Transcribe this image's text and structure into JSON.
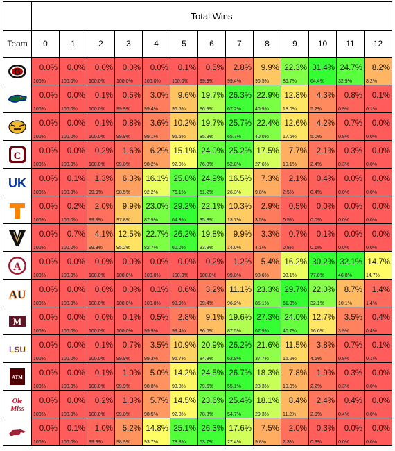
{
  "header": {
    "title": "Total Wins",
    "team_label": "Team"
  },
  "win_columns": [
    "0",
    "1",
    "2",
    "3",
    "4",
    "5",
    "6",
    "7",
    "8",
    "9",
    "10",
    "11",
    "12"
  ],
  "teams": [
    {
      "name": "Georgia",
      "logo_text": "G",
      "icon": "georgia-g-logo-icon",
      "pct": [
        "0.0%",
        "0.0%",
        "0.0%",
        "0.0%",
        "0.0%",
        "0.1%",
        "0.5%",
        "2.8%",
        "9.9%",
        "22.3%",
        "31.4%",
        "24.7%",
        "8.2%"
      ],
      "cum": [
        "100%",
        "100.0%",
        "100.0%",
        "100.0%",
        "100.0%",
        "100.0%",
        "99.9%",
        "99.4%",
        "96.5%",
        "86.7%",
        "64.4%",
        "32.9%",
        "8.2%"
      ]
    },
    {
      "name": "Florida",
      "logo_text": "",
      "icon": "florida-gator-logo-icon",
      "pct": [
        "0.0%",
        "0.0%",
        "0.1%",
        "0.5%",
        "3.0%",
        "9.6%",
        "19.7%",
        "26.3%",
        "22.9%",
        "12.8%",
        "4.3%",
        "0.8%",
        "0.1%"
      ],
      "cum": [
        "100%",
        "100.0%",
        "100.0%",
        "99.9%",
        "99.4%",
        "96.5%",
        "86.9%",
        "67.2%",
        "40.9%",
        "18.0%",
        "5.2%",
        "0.9%",
        "0.1%"
      ]
    },
    {
      "name": "Missouri",
      "logo_text": "",
      "icon": "missouri-tiger-logo-icon",
      "pct": [
        "0.0%",
        "0.0%",
        "0.1%",
        "0.8%",
        "3.6%",
        "10.2%",
        "19.7%",
        "25.7%",
        "22.4%",
        "12.6%",
        "4.2%",
        "0.7%",
        "0.0%"
      ],
      "cum": [
        "100%",
        "100.0%",
        "100.0%",
        "99.9%",
        "99.1%",
        "95.5%",
        "85.3%",
        "65.7%",
        "40.0%",
        "17.6%",
        "5.0%",
        "0.8%",
        "0.0%"
      ]
    },
    {
      "name": "South Carolina",
      "logo_text": "C",
      "icon": "south-carolina-c-logo-icon",
      "pct": [
        "0.0%",
        "0.0%",
        "0.2%",
        "1.6%",
        "6.2%",
        "15.1%",
        "24.0%",
        "25.2%",
        "17.5%",
        "7.7%",
        "2.1%",
        "0.3%",
        "0.0%"
      ],
      "cum": [
        "100%",
        "100.0%",
        "100.0%",
        "99.8%",
        "98.2%",
        "92.0%",
        "76.8%",
        "52.8%",
        "27.6%",
        "10.1%",
        "2.4%",
        "0.3%",
        "0.0%"
      ]
    },
    {
      "name": "Kentucky",
      "logo_text": "UK",
      "icon": "kentucky-uk-logo-icon",
      "pct": [
        "0.0%",
        "0.1%",
        "1.3%",
        "6.3%",
        "16.1%",
        "25.0%",
        "24.9%",
        "16.5%",
        "7.3%",
        "2.1%",
        "0.4%",
        "0.0%",
        "0.0%"
      ],
      "cum": [
        "100%",
        "100.0%",
        "99.9%",
        "98.5%",
        "92.2%",
        "76.1%",
        "51.2%",
        "26.3%",
        "9.8%",
        "2.5%",
        "0.4%",
        "0.0%",
        "0.0%"
      ]
    },
    {
      "name": "Tennessee",
      "logo_text": "T",
      "icon": "tennessee-t-logo-icon",
      "pct": [
        "0.0%",
        "0.2%",
        "2.0%",
        "9.9%",
        "23.0%",
        "29.2%",
        "22.1%",
        "10.3%",
        "2.9%",
        "0.5%",
        "0.0%",
        "0.0%",
        "0.0%"
      ],
      "cum": [
        "100%",
        "100.0%",
        "99.8%",
        "97.8%",
        "87.9%",
        "64.9%",
        "35.8%",
        "13.7%",
        "3.5%",
        "0.5%",
        "0.0%",
        "0.0%",
        "0.0%"
      ]
    },
    {
      "name": "Vanderbilt",
      "logo_text": "V",
      "icon": "vanderbilt-v-logo-icon",
      "pct": [
        "0.0%",
        "0.7%",
        "4.1%",
        "12.5%",
        "22.7%",
        "26.2%",
        "19.8%",
        "9.9%",
        "3.3%",
        "0.7%",
        "0.1%",
        "0.0%",
        "0.0%"
      ],
      "cum": [
        "100%",
        "100.0%",
        "99.3%",
        "95.2%",
        "82.7%",
        "60.0%",
        "33.8%",
        "14.0%",
        "4.1%",
        "0.8%",
        "0.1%",
        "0.0%",
        "0.0%"
      ]
    },
    {
      "name": "Alabama",
      "logo_text": "A",
      "icon": "alabama-a-logo-icon",
      "pct": [
        "0.0%",
        "0.0%",
        "0.0%",
        "0.0%",
        "0.0%",
        "0.0%",
        "0.2%",
        "1.2%",
        "5.4%",
        "16.2%",
        "30.2%",
        "32.1%",
        "14.7%"
      ],
      "cum": [
        "100%",
        "100.0%",
        "100.0%",
        "100.0%",
        "100.0%",
        "100.0%",
        "100.0%",
        "99.8%",
        "98.6%",
        "93.1%",
        "77.0%",
        "46.8%",
        "14.7%"
      ]
    },
    {
      "name": "Auburn",
      "logo_text": "AU",
      "icon": "auburn-au-logo-icon",
      "pct": [
        "0.0%",
        "0.0%",
        "0.0%",
        "0.0%",
        "0.1%",
        "0.6%",
        "3.2%",
        "11.1%",
        "23.3%",
        "29.7%",
        "22.0%",
        "8.7%",
        "1.4%"
      ],
      "cum": [
        "100%",
        "100.0%",
        "100.0%",
        "100.0%",
        "100.0%",
        "99.9%",
        "99.4%",
        "96.2%",
        "85.1%",
        "61.8%",
        "32.1%",
        "10.1%",
        "1.4%"
      ]
    },
    {
      "name": "Mississippi State",
      "logo_text": "M",
      "icon": "mississippi-state-m-logo-icon",
      "pct": [
        "0.0%",
        "0.0%",
        "0.0%",
        "0.1%",
        "0.5%",
        "2.8%",
        "9.1%",
        "19.6%",
        "27.3%",
        "24.0%",
        "12.7%",
        "3.5%",
        "0.4%"
      ],
      "cum": [
        "100%",
        "100.0%",
        "100.0%",
        "100.0%",
        "99.9%",
        "99.4%",
        "96.6%",
        "87.5%",
        "67.9%",
        "40.7%",
        "16.6%",
        "3.9%",
        "0.4%"
      ]
    },
    {
      "name": "LSU",
      "logo_text": "LSU",
      "icon": "lsu-logo-icon",
      "pct": [
        "0.0%",
        "0.0%",
        "0.1%",
        "0.7%",
        "3.5%",
        "10.9%",
        "20.9%",
        "26.2%",
        "21.6%",
        "11.5%",
        "3.8%",
        "0.7%",
        "0.1%"
      ],
      "cum": [
        "100%",
        "100.0%",
        "100.0%",
        "99.9%",
        "99.3%",
        "95.7%",
        "84.8%",
        "63.9%",
        "37.7%",
        "16.2%",
        "4.6%",
        "0.8%",
        "0.1%"
      ]
    },
    {
      "name": "Texas A&M",
      "logo_text": "ATM",
      "icon": "texas-am-logo-icon",
      "pct": [
        "0.0%",
        "0.0%",
        "0.1%",
        "1.0%",
        "5.0%",
        "14.2%",
        "24.5%",
        "26.7%",
        "18.3%",
        "7.8%",
        "1.9%",
        "0.3%",
        "0.0%"
      ],
      "cum": [
        "100%",
        "100.0%",
        "100.0%",
        "99.9%",
        "98.8%",
        "93.8%",
        "79.6%",
        "55.1%",
        "28.3%",
        "10.0%",
        "2.2%",
        "0.3%",
        "0.0%"
      ]
    },
    {
      "name": "Ole Miss",
      "logo_text": "Ole Miss",
      "icon": "ole-miss-script-logo-icon",
      "pct": [
        "0.0%",
        "0.0%",
        "0.2%",
        "1.3%",
        "5.7%",
        "14.5%",
        "23.6%",
        "25.4%",
        "18.1%",
        "8.4%",
        "2.4%",
        "0.4%",
        "0.0%"
      ],
      "cum": [
        "100%",
        "100.0%",
        "100.0%",
        "99.8%",
        "98.5%",
        "92.8%",
        "78.3%",
        "54.7%",
        "29.3%",
        "11.2%",
        "2.9%",
        "0.4%",
        "0.0%"
      ]
    },
    {
      "name": "Arkansas",
      "logo_text": "",
      "icon": "arkansas-razorback-logo-icon",
      "pct": [
        "0.0%",
        "0.1%",
        "1.0%",
        "5.2%",
        "14.8%",
        "25.1%",
        "26.3%",
        "17.6%",
        "7.5%",
        "2.0%",
        "0.3%",
        "0.0%",
        "0.0%"
      ],
      "cum": [
        "100%",
        "100.0%",
        "99.9%",
        "98.9%",
        "93.7%",
        "78.8%",
        "53.7%",
        "27.4%",
        "9.8%",
        "2.3%",
        "0.3%",
        "0.0%",
        "0.0%"
      ]
    }
  ],
  "chart_data": {
    "type": "heatmap",
    "title": "Total Wins",
    "xlabel": "Total Wins",
    "ylabel": "Team",
    "x": [
      0,
      1,
      2,
      3,
      4,
      5,
      6,
      7,
      8,
      9,
      10,
      11,
      12
    ],
    "y": [
      "Georgia",
      "Florida",
      "Missouri",
      "South Carolina",
      "Kentucky",
      "Tennessee",
      "Vanderbilt",
      "Alabama",
      "Auburn",
      "Mississippi State",
      "LSU",
      "Texas A&M",
      "Ole Miss",
      "Arkansas"
    ],
    "values": [
      [
        0.0,
        0.0,
        0.0,
        0.0,
        0.0,
        0.1,
        0.5,
        2.8,
        9.9,
        22.3,
        31.4,
        24.7,
        8.2
      ],
      [
        0.0,
        0.0,
        0.1,
        0.5,
        3.0,
        9.6,
        19.7,
        26.3,
        22.9,
        12.8,
        4.3,
        0.8,
        0.1
      ],
      [
        0.0,
        0.0,
        0.1,
        0.8,
        3.6,
        10.2,
        19.7,
        25.7,
        22.4,
        12.6,
        4.2,
        0.7,
        0.0
      ],
      [
        0.0,
        0.0,
        0.2,
        1.6,
        6.2,
        15.1,
        24.0,
        25.2,
        17.5,
        7.7,
        2.1,
        0.3,
        0.0
      ],
      [
        0.0,
        0.1,
        1.3,
        6.3,
        16.1,
        25.0,
        24.9,
        16.5,
        7.3,
        2.1,
        0.4,
        0.0,
        0.0
      ],
      [
        0.0,
        0.2,
        2.0,
        9.9,
        23.0,
        29.2,
        22.1,
        10.3,
        2.9,
        0.5,
        0.0,
        0.0,
        0.0
      ],
      [
        0.0,
        0.7,
        4.1,
        12.5,
        22.7,
        26.2,
        19.8,
        9.9,
        3.3,
        0.7,
        0.1,
        0.0,
        0.0
      ],
      [
        0.0,
        0.0,
        0.0,
        0.0,
        0.0,
        0.0,
        0.2,
        1.2,
        5.4,
        16.2,
        30.2,
        32.1,
        14.7
      ],
      [
        0.0,
        0.0,
        0.0,
        0.0,
        0.1,
        0.6,
        3.2,
        11.1,
        23.3,
        29.7,
        22.0,
        8.7,
        1.4
      ],
      [
        0.0,
        0.0,
        0.0,
        0.1,
        0.5,
        2.8,
        9.1,
        19.6,
        27.3,
        24.0,
        12.7,
        3.5,
        0.4
      ],
      [
        0.0,
        0.0,
        0.1,
        0.7,
        3.5,
        10.9,
        20.9,
        26.2,
        21.6,
        11.5,
        3.8,
        0.7,
        0.1
      ],
      [
        0.0,
        0.0,
        0.1,
        1.0,
        5.0,
        14.2,
        24.5,
        26.7,
        18.3,
        7.8,
        1.9,
        0.3,
        0.0
      ],
      [
        0.0,
        0.0,
        0.2,
        1.3,
        5.7,
        14.5,
        23.6,
        25.4,
        18.1,
        8.4,
        2.4,
        0.4,
        0.0
      ],
      [
        0.0,
        0.1,
        1.0,
        5.2,
        14.8,
        25.1,
        26.3,
        17.6,
        7.5,
        2.0,
        0.3,
        0.0,
        0.0
      ]
    ],
    "unit": "%",
    "color_scale": {
      "low": "#ff5b5b",
      "mid": "#ffff66",
      "high": "#33ff33"
    }
  }
}
